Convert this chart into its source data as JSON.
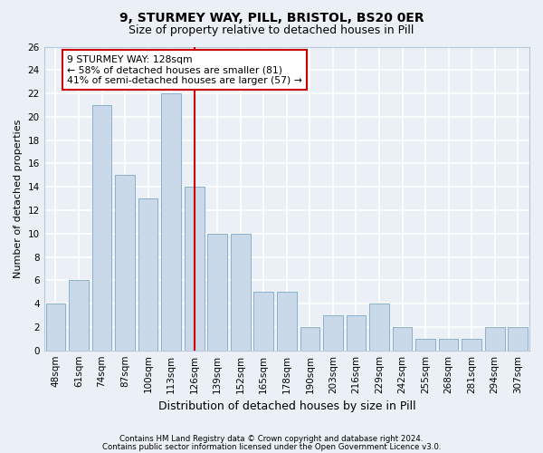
{
  "title1": "9, STURMEY WAY, PILL, BRISTOL, BS20 0ER",
  "title2": "Size of property relative to detached houses in Pill",
  "xlabel": "Distribution of detached houses by size in Pill",
  "ylabel": "Number of detached properties",
  "categories": [
    "48sqm",
    "61sqm",
    "74sqm",
    "87sqm",
    "100sqm",
    "113sqm",
    "126sqm",
    "139sqm",
    "152sqm",
    "165sqm",
    "178sqm",
    "190sqm",
    "203sqm",
    "216sqm",
    "229sqm",
    "242sqm",
    "255sqm",
    "268sqm",
    "281sqm",
    "294sqm",
    "307sqm"
  ],
  "values": [
    4,
    6,
    21,
    15,
    13,
    22,
    14,
    10,
    10,
    5,
    5,
    2,
    3,
    3,
    4,
    2,
    1,
    1,
    1,
    2,
    2
  ],
  "bar_color": "#c9d9ea",
  "bar_edge_color": "#8ab0cc",
  "highlight_index": 6,
  "highlight_line_color": "#cc0000",
  "ylim": [
    0,
    26
  ],
  "yticks": [
    0,
    2,
    4,
    6,
    8,
    10,
    12,
    14,
    16,
    18,
    20,
    22,
    24,
    26
  ],
  "annotation_text1": "9 STURMEY WAY: 128sqm",
  "annotation_text2": "← 58% of detached houses are smaller (81)",
  "annotation_text3": "41% of semi-detached houses are larger (57) →",
  "annotation_box_color": "#ffffff",
  "annotation_box_edge": "#cc0000",
  "footer1": "Contains HM Land Registry data © Crown copyright and database right 2024.",
  "footer2": "Contains public sector information licensed under the Open Government Licence v3.0.",
  "bg_color": "#eaf0f6",
  "grid_color": "#ffffff",
  "title_fontsize": 10,
  "subtitle_fontsize": 9,
  "ylabel_fontsize": 8,
  "xlabel_fontsize": 9,
  "tick_fontsize": 7.5,
  "footer_fontsize": 6.2
}
